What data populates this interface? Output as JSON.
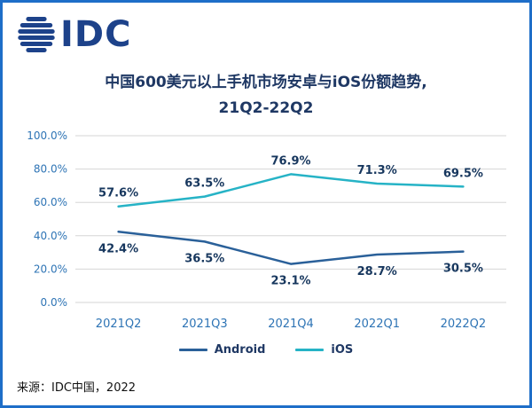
{
  "logo": {
    "text": "IDC"
  },
  "title": {
    "line1": "中国600美元以上手机市场安卓与iOS份额趋势,",
    "line2": "21Q2-22Q2"
  },
  "source": "来源：IDC中国，2022",
  "colors": {
    "border": "#1E6EC8",
    "title": "#1F3864",
    "axis_label": "#2E74B5",
    "data_label": "#17375E",
    "grid": "#D6D6D6",
    "android": "#2A6099",
    "ios": "#26B3C6",
    "logo": "#1D428A"
  },
  "chart_data": {
    "type": "line",
    "title": "中国600美元以上手机市场安卓与iOS份额趋势, 21Q2-22Q2",
    "x": [
      "2021Q2",
      "2021Q3",
      "2021Q4",
      "2022Q1",
      "2022Q2"
    ],
    "series": [
      {
        "name": "Android",
        "values": [
          42.4,
          36.5,
          23.1,
          28.7,
          30.5
        ],
        "color_key": "android",
        "label_position": "below"
      },
      {
        "name": "iOS",
        "values": [
          57.6,
          63.5,
          76.9,
          71.3,
          69.5
        ],
        "color_key": "ios",
        "label_position": "above"
      }
    ],
    "ylim": [
      0,
      100
    ],
    "ytick_step": 20,
    "ytick_format": "percent1",
    "grid": true,
    "legend_position": "bottom"
  }
}
